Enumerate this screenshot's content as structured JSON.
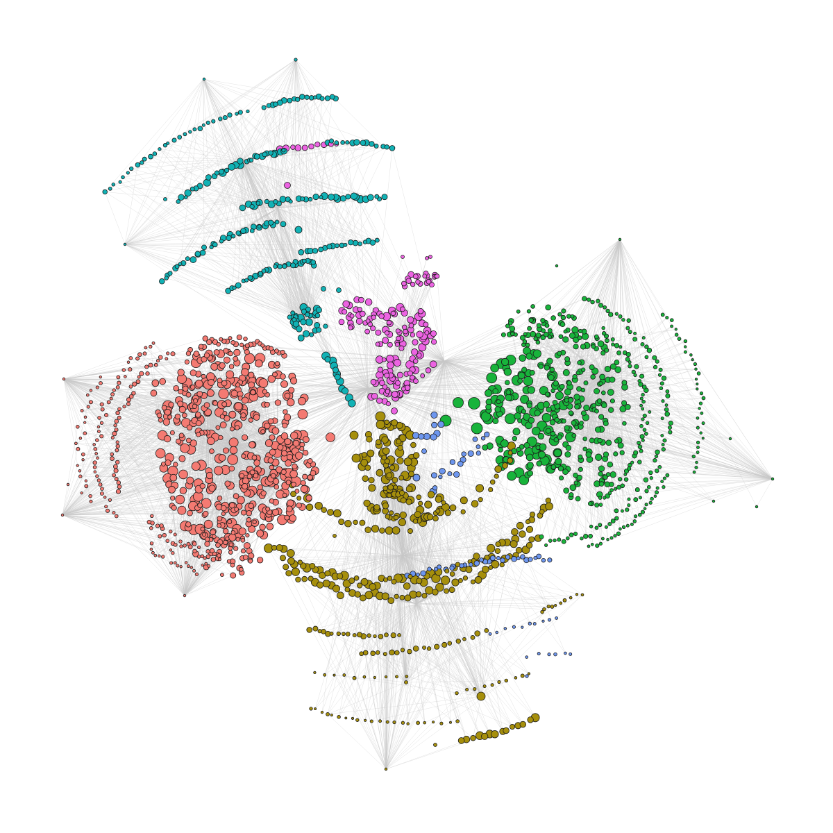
{
  "diagram": {
    "type": "network-graph",
    "layout": "force-directed",
    "background_color": "#ffffff",
    "edge_color": "#c8c8c8",
    "node_outline_color": "#1a1a1a",
    "clusters": [
      {
        "id": "red-cluster",
        "color": "#f47a72"
      },
      {
        "id": "green-cluster",
        "color": "#18b33b"
      },
      {
        "id": "olive-cluster",
        "color": "#a68f0c"
      },
      {
        "id": "blue-cluster",
        "color": "#6d96ee"
      },
      {
        "id": "teal-cluster",
        "color": "#11b2b5"
      },
      {
        "id": "magenta-cluster",
        "color": "#ec63e2"
      }
    ]
  }
}
